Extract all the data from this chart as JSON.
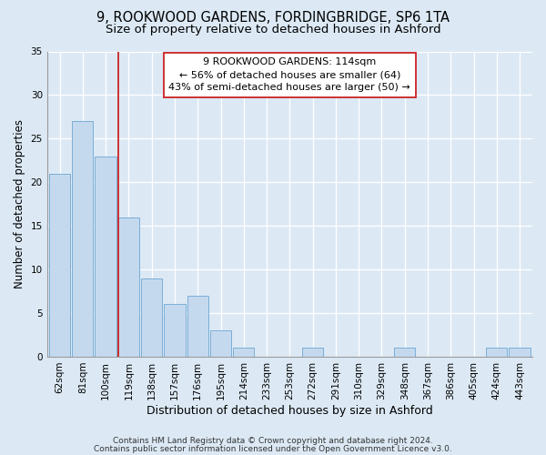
{
  "title1": "9, ROOKWOOD GARDENS, FORDINGBRIDGE, SP6 1TA",
  "title2": "Size of property relative to detached houses in Ashford",
  "xlabel": "Distribution of detached houses by size in Ashford",
  "ylabel": "Number of detached properties",
  "categories": [
    "62sqm",
    "81sqm",
    "100sqm",
    "119sqm",
    "138sqm",
    "157sqm",
    "176sqm",
    "195sqm",
    "214sqm",
    "233sqm",
    "253sqm",
    "272sqm",
    "291sqm",
    "310sqm",
    "329sqm",
    "348sqm",
    "367sqm",
    "386sqm",
    "405sqm",
    "424sqm",
    "443sqm"
  ],
  "values": [
    21,
    27,
    23,
    16,
    9,
    6,
    7,
    3,
    1,
    0,
    0,
    1,
    0,
    0,
    0,
    1,
    0,
    0,
    0,
    1,
    1
  ],
  "bar_color": "#c5d9ee",
  "bar_edge_color": "#7aaed6",
  "background_color": "#dce9f5",
  "grid_color": "#ffffff",
  "vline_x_idx": 3,
  "vline_color": "#cc2222",
  "annotation_text": "9 ROOKWOOD GARDENS: 114sqm\n← 56% of detached houses are smaller (64)\n43% of semi-detached houses are larger (50) →",
  "annotation_box_color": "#ffffff",
  "annotation_box_edge": "#cc2222",
  "ylim": [
    0,
    35
  ],
  "yticks": [
    0,
    5,
    10,
    15,
    20,
    25,
    30,
    35
  ],
  "footer1": "Contains HM Land Registry data © Crown copyright and database right 2024.",
  "footer2": "Contains public sector information licensed under the Open Government Licence v3.0.",
  "title1_fontsize": 10.5,
  "title2_fontsize": 9.5,
  "xlabel_fontsize": 9,
  "ylabel_fontsize": 8.5,
  "tick_fontsize": 7.5,
  "annotation_fontsize": 8,
  "footer_fontsize": 6.5
}
